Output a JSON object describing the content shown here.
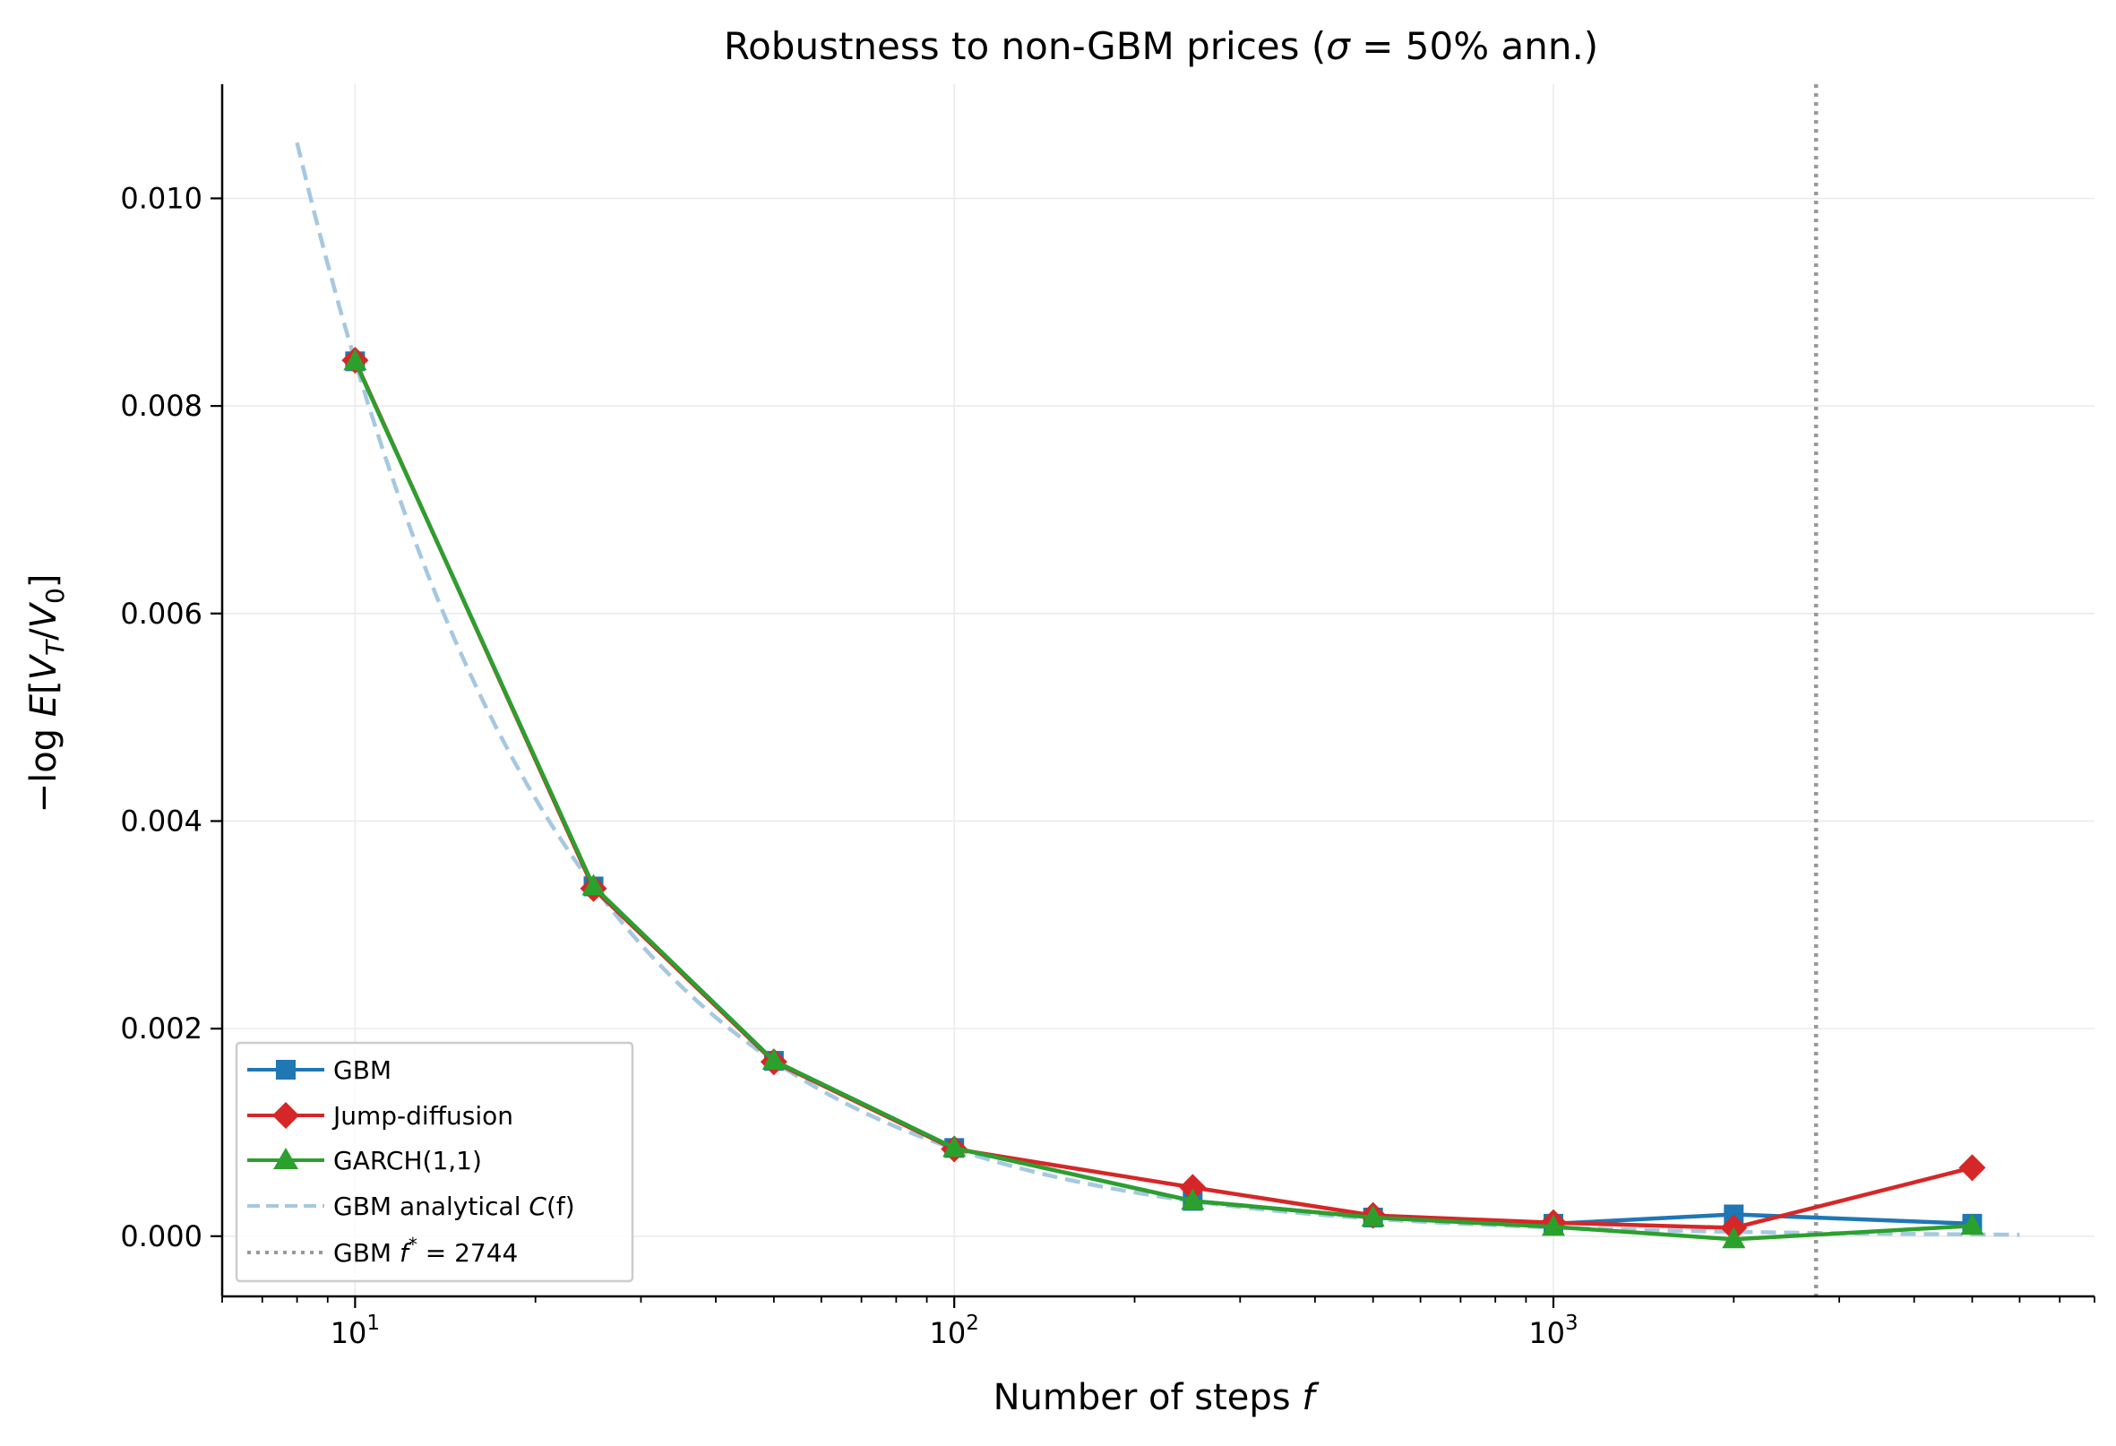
{
  "chart_data": {
    "type": "line",
    "title": "Robustness to non-GBM prices (σ = 50% ann.)",
    "xlabel": "Number of steps f",
    "ylabel": "−log E[V_T/V_0]",
    "xscale": "log",
    "xlim": [
      6,
      8000
    ],
    "ylim": [
      -0.00058,
      0.0111
    ],
    "grid": true,
    "xticks": [
      {
        "value": 10,
        "base": "10",
        "exp": "1"
      },
      {
        "value": 100,
        "base": "10",
        "exp": "2"
      },
      {
        "value": 1000,
        "base": "10",
        "exp": "3"
      }
    ],
    "yticks": [
      {
        "value": 0.0,
        "label": "0.000"
      },
      {
        "value": 0.002,
        "label": "0.002"
      },
      {
        "value": 0.004,
        "label": "0.004"
      },
      {
        "value": 0.006,
        "label": "0.006"
      },
      {
        "value": 0.008,
        "label": "0.008"
      },
      {
        "value": 0.01,
        "label": "0.010"
      }
    ],
    "x": [
      10,
      25,
      50,
      100,
      250,
      500,
      1000,
      2000,
      5000
    ],
    "series": [
      {
        "name": "GBM",
        "color": "#1f77b4",
        "marker": "square",
        "values": [
          0.00843,
          0.00337,
          0.00169,
          0.00085,
          0.00034,
          0.00018,
          0.00012,
          0.00021,
          0.00012
        ]
      },
      {
        "name": "Jump-diffusion",
        "color": "#d62728",
        "marker": "diamond",
        "values": [
          0.00844,
          0.00335,
          0.00168,
          0.00084,
          0.00047,
          0.0002,
          0.00013,
          8e-05,
          0.00066
        ]
      },
      {
        "name": "GARCH(1,1)",
        "color": "#2ca02c",
        "marker": "triangle",
        "values": [
          0.00843,
          0.00337,
          0.00169,
          0.00085,
          0.00034,
          0.00018,
          9e-05,
          -3e-05,
          0.0001
        ]
      }
    ],
    "analytical": {
      "name": "GBM analytical C(f)",
      "color": "#a6c8e0",
      "style": "dashed",
      "x_range": [
        8,
        6000
      ],
      "formula": "0.0843 / f"
    },
    "vline": {
      "name": "GBM f* = 2744",
      "x": 2744,
      "color": "#999999",
      "style": "dotted"
    },
    "legend": {
      "position": "lower-left",
      "entries": [
        {
          "label": "GBM"
        },
        {
          "label": "Jump-diffusion"
        },
        {
          "label": "GARCH(1,1)"
        },
        {
          "label_pre": "GBM analytical ",
          "label_math": "C",
          "label_post": "(f)"
        },
        {
          "label_pre": "GBM ",
          "label_math": "f",
          "label_sup": "*",
          "label_post": " = 2744"
        }
      ]
    },
    "title_parts": {
      "pre": "Robustness to non-GBM prices (",
      "sym": "σ",
      "post": " = 50% ann.)"
    },
    "xlabel_parts": {
      "pre": "Number of steps ",
      "sym": "f"
    },
    "ylabel_parts": {
      "a": "−log ",
      "b": "E",
      "c": "[",
      "d": "V",
      "e": "T",
      "f": "/",
      "g": "V",
      "h": "0",
      "i": "]"
    }
  }
}
